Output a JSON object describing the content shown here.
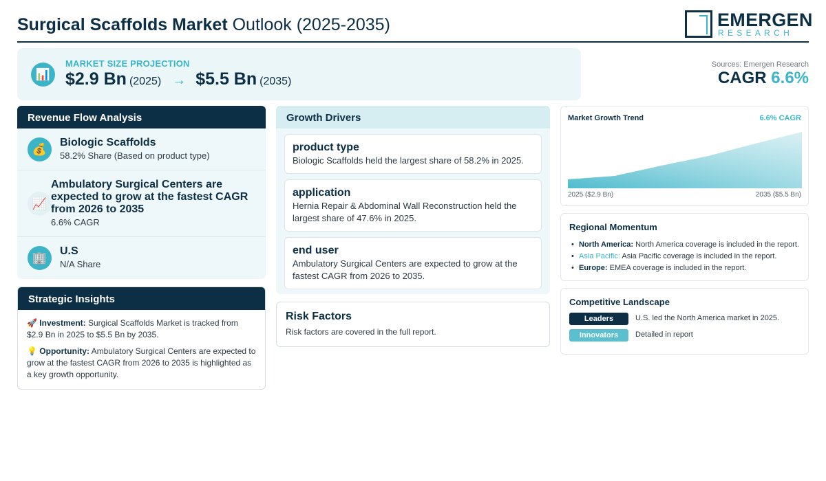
{
  "header": {
    "title_bold": "Surgical Scaffolds Market",
    "title_rest": " Outlook (2025-2035)",
    "logo_name": "EMERGEN",
    "logo_sub": "RESEARCH"
  },
  "projection": {
    "icon": "bar-chart-icon",
    "label": "MARKET SIZE PROJECTION",
    "start_value": "$2.9 Bn",
    "start_year": "(2025)",
    "arrow": "→",
    "end_value": "$5.5 Bn",
    "end_year": "(2035)"
  },
  "sources": "Sources: Emergen Research",
  "cagr": {
    "label": "CAGR",
    "value": "6.6%"
  },
  "revenue_flow": {
    "title": "Revenue Flow Analysis",
    "items": [
      {
        "icon": "money-bag-icon",
        "title": "Biologic Scaffolds",
        "sub": "58.2% Share (Based on product type)"
      },
      {
        "icon": "trend-chart-icon",
        "title": "Ambulatory Surgical Centers are expected to grow at the fastest CAGR from 2026 to 2035",
        "sub": "6.6% CAGR"
      },
      {
        "icon": "building-icon",
        "title": "U.S",
        "sub": "N/A Share"
      }
    ]
  },
  "insights": {
    "title": "Strategic Insights",
    "items": [
      {
        "icon": "🚀",
        "label": "Investment:",
        "text": " Surgical Scaffolds Market is tracked from $2.9 Bn in 2025 to $5.5 Bn by 2035."
      },
      {
        "icon": "💡",
        "label": "Opportunity:",
        "text": " Ambulatory Surgical Centers are expected to grow at the fastest CAGR from 2026 to 2035 is highlighted as a key growth opportunity."
      }
    ]
  },
  "drivers": {
    "title": "Growth Drivers",
    "items": [
      {
        "title": "product type",
        "text": "Biologic Scaffolds held the largest share of 58.2% in 2025."
      },
      {
        "title": "application",
        "text": "Hernia Repair & Abdominal Wall Reconstruction held the largest share of 47.6% in 2025."
      },
      {
        "title": "end user",
        "text": "Ambulatory Surgical Centers are expected to grow at the fastest CAGR from 2026 to 2035."
      }
    ]
  },
  "risk": {
    "title": "Risk Factors",
    "text": "Risk factors are covered in the full report."
  },
  "trend": {
    "title": "Market Growth Trend",
    "cagr_label": "6.6% CAGR",
    "start_label": "2025 ($2.9 Bn)",
    "end_label": "2035 ($5.5 Bn)"
  },
  "regional": {
    "title": "Regional Momentum",
    "items": [
      {
        "name": "North America:",
        "text": " North America coverage is included in the report."
      },
      {
        "name": "Asia Pacific:",
        "text": " Asia Pacific coverage is included in the report."
      },
      {
        "name": "Europe:",
        "text": " EMEA coverage is included in the report."
      }
    ]
  },
  "competitive": {
    "title": "Competitive Landscape",
    "rows": [
      {
        "badge": "Leaders",
        "text": "U.S. led the North America market in 2025."
      },
      {
        "badge": "Innovators",
        "text": "Detailed in report"
      }
    ]
  },
  "colors": {
    "navy": "#0d2f45",
    "teal": "#3cb4c8",
    "panel": "#eef7f9"
  }
}
